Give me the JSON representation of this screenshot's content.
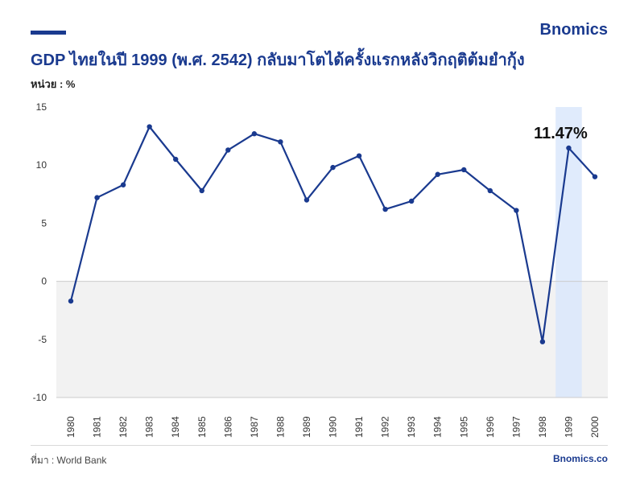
{
  "header": {
    "brand": "Bnomics",
    "title": "GDP ไทยในปี 1999 (พ.ศ. 2542) กลับมาโตได้ครั้งแรกหลังวิกฤติต้มยำกุ้ง",
    "unit": "หน่วย : %"
  },
  "footer": {
    "source": "ที่มา : World Bank",
    "site": "Bnomics.co"
  },
  "colors": {
    "line": "#1a3a8f",
    "highlight": "#dbe8fb",
    "negative_band": "#f2f2f2"
  },
  "chart_data": {
    "type": "line",
    "title": "GDP ไทยในปี 1999 (พ.ศ. 2542) กลับมาโตได้ครั้งแรกหลังวิกฤติต้มยำกุ้ง",
    "xlabel": "",
    "ylabel": "หน่วย : %",
    "categories": [
      "1980",
      "1981",
      "1982",
      "1983",
      "1984",
      "1985",
      "1986",
      "1987",
      "1988",
      "1989",
      "1990",
      "1991",
      "1992",
      "1993",
      "1994",
      "1995",
      "1996",
      "1997",
      "1998",
      "1999",
      "2000"
    ],
    "series": [
      {
        "values": [
          -1.7,
          7.2,
          8.3,
          13.3,
          10.5,
          7.8,
          11.3,
          12.7,
          12.0,
          7.0,
          9.8,
          10.8,
          6.2,
          6.9,
          9.2,
          9.6,
          7.8,
          6.1,
          -5.2,
          11.47,
          9.0
        ]
      }
    ],
    "yticks": [
      15,
      10,
      5,
      0,
      -5,
      -10
    ],
    "ylim": [
      -10,
      15
    ],
    "highlight_category": "1999",
    "annotation": "11.47%",
    "grid": false
  }
}
